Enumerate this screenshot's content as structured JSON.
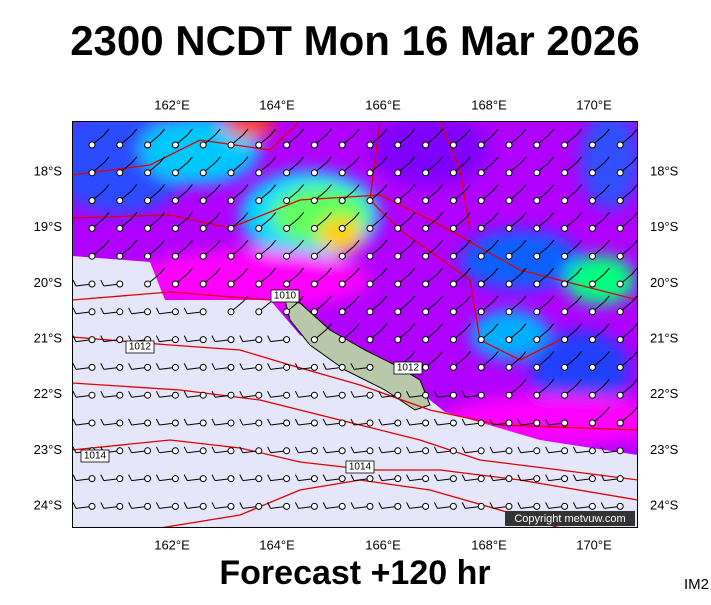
{
  "header": {
    "title": "2300 NCDT Mon 16 Mar 2026"
  },
  "map": {
    "lon_labels": [
      "162°E",
      "164°E",
      "166°E",
      "168°E",
      "170°E"
    ],
    "lat_labels": [
      "18°S",
      "19°S",
      "20°S",
      "21°S",
      "22°S",
      "23°S",
      "24°S"
    ],
    "isobar_labels": [
      "1010",
      "1012",
      "1012",
      "1014",
      "1014"
    ],
    "copyright": "Copyright metvuw.com"
  },
  "footer": {
    "forecast": "Forecast +120 hr",
    "code": "IM2"
  }
}
